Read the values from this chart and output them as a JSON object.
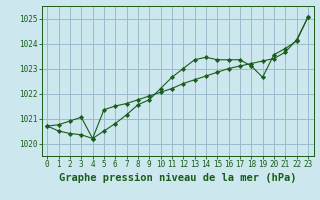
{
  "title": "Graphe pression niveau de la mer (hPa)",
  "bg_color": "#cce8ee",
  "grid_color": "#99bbcc",
  "line_color": "#1a5c1a",
  "ylim": [
    1019.5,
    1025.5
  ],
  "yticks": [
    1020,
    1021,
    1022,
    1023,
    1024,
    1025
  ],
  "xlim": [
    -0.5,
    23.5
  ],
  "xticks": [
    0,
    1,
    2,
    3,
    4,
    5,
    6,
    7,
    8,
    9,
    10,
    11,
    12,
    13,
    14,
    15,
    16,
    17,
    18,
    19,
    20,
    21,
    22,
    23
  ],
  "series1_x": [
    0,
    1,
    2,
    3,
    4,
    5,
    6,
    7,
    8,
    9,
    10,
    11,
    12,
    13,
    14,
    15,
    16,
    17,
    18,
    19,
    20,
    21,
    22,
    23
  ],
  "series1_y": [
    1020.7,
    1020.5,
    1020.4,
    1020.35,
    1020.2,
    1020.5,
    1020.8,
    1021.15,
    1021.55,
    1021.75,
    1022.2,
    1022.65,
    1023.0,
    1023.35,
    1023.45,
    1023.35,
    1023.35,
    1023.35,
    1023.1,
    1022.65,
    1023.55,
    1023.8,
    1024.1,
    1025.05
  ],
  "series2_x": [
    0,
    1,
    2,
    3,
    4,
    5,
    6,
    7,
    8,
    9,
    10,
    11,
    12,
    13,
    14,
    15,
    16,
    17,
    18,
    19,
    20,
    21,
    22,
    23
  ],
  "series2_y": [
    1020.7,
    1020.75,
    1020.9,
    1021.05,
    1020.2,
    1021.35,
    1021.5,
    1021.6,
    1021.75,
    1021.9,
    1022.05,
    1022.2,
    1022.4,
    1022.55,
    1022.7,
    1022.85,
    1023.0,
    1023.1,
    1023.2,
    1023.3,
    1023.4,
    1023.65,
    1024.15,
    1025.05
  ],
  "tick_fontsize": 5.5,
  "xlabel_fontsize": 7.5
}
